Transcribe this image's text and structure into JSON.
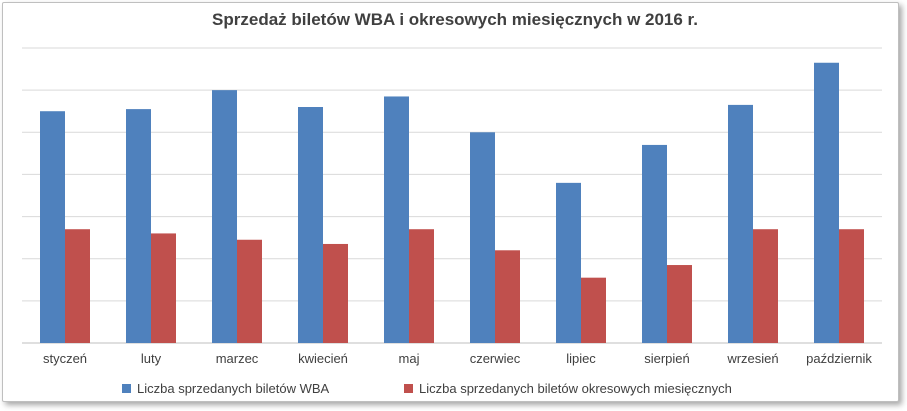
{
  "chart_data": {
    "type": "bar",
    "title": "Sprzedaż biletów WBA i okresowych miesięcznych w 2016 r.",
    "categories": [
      "styczeń",
      "luty",
      "marzec",
      "kwiecień",
      "maj",
      "czerwiec",
      "lipiec",
      "sierpień",
      "wrzesień",
      "październik"
    ],
    "series": [
      {
        "name": "Liczba sprzedanych biletów WBA",
        "color": "#4f81bd",
        "values": [
          5.5,
          5.55,
          6.0,
          5.6,
          5.85,
          5.0,
          3.8,
          4.7,
          5.65,
          6.65
        ]
      },
      {
        "name": "Liczba sprzedanych biletów okresowych miesięcznych",
        "color": "#c0504d",
        "values": [
          2.7,
          2.6,
          2.45,
          2.35,
          2.7,
          2.2,
          1.55,
          1.85,
          2.7,
          2.7
        ]
      }
    ],
    "ylim": [
      0,
      7
    ],
    "y_tick_labels_shown": false,
    "grid": true,
    "legend_position": "bottom"
  }
}
